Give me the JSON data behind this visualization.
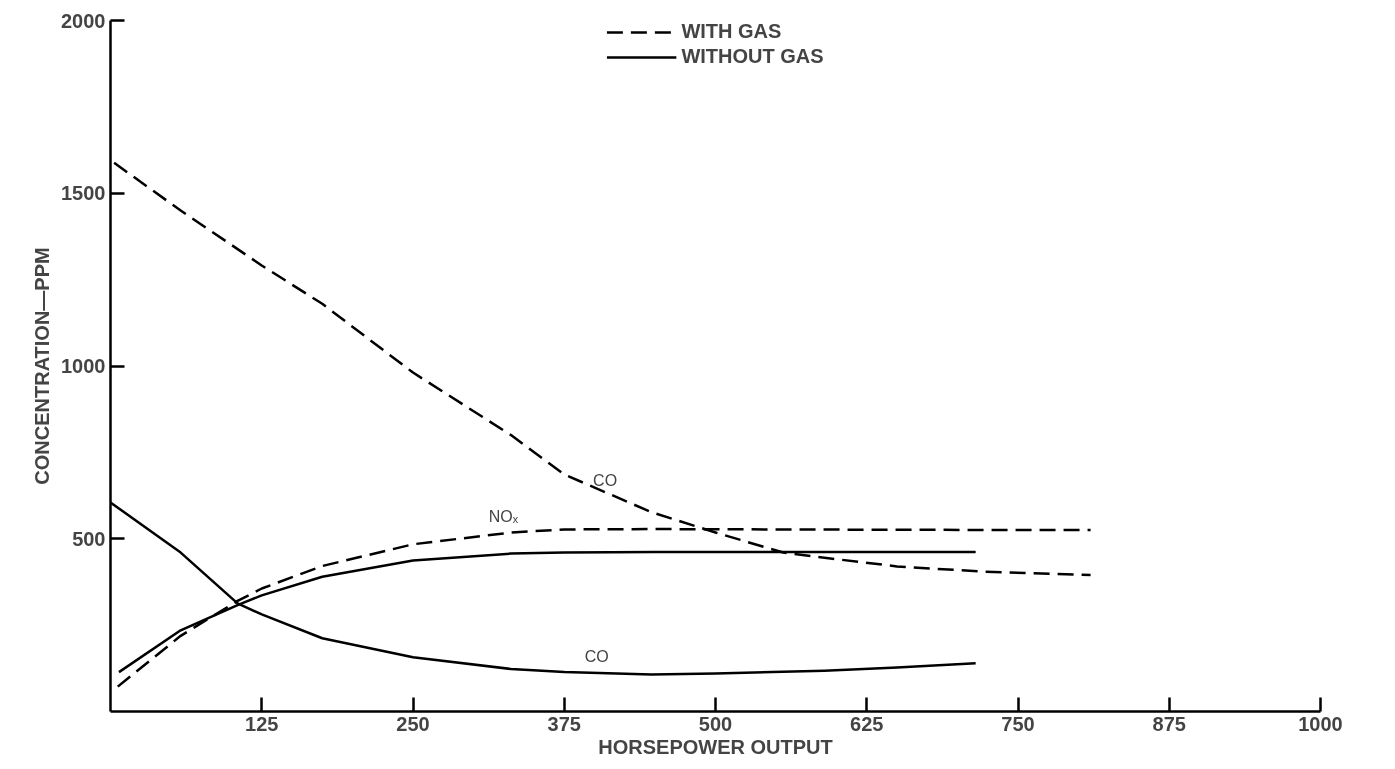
{
  "chart_data": {
    "type": "line",
    "xlabel": "HORSEPOWER OUTPUT",
    "ylabel": "CONCENTRATION—PPM",
    "xlim": [
      0,
      1000
    ],
    "ylim": [
      0,
      2000
    ],
    "xticks": [
      125,
      250,
      375,
      500,
      625,
      750,
      875,
      1000
    ],
    "yticks": [
      500,
      1000,
      1500,
      2000
    ],
    "grid": false,
    "legend": "top",
    "marker": "none",
    "series": [
      {
        "name": "WITH GAS",
        "color": "#000000",
        "line_style": "dashed",
        "x": [
          3,
          58,
          125,
          175,
          250,
          331,
          375,
          447,
          500,
          556,
          590,
          650,
          720,
          810
        ],
        "values": [
          1588,
          1450,
          1291,
          1180,
          981,
          800,
          686,
          577,
          518,
          460,
          445,
          420,
          405,
          395
        ]
      },
      {
        "color": "#000000",
        "line_style": "dashed",
        "x": [
          6,
          58,
          105,
          125,
          175,
          250,
          331,
          375,
          450,
          550,
          650,
          810
        ],
        "values": [
          72,
          219,
          320,
          356,
          421,
          484,
          518,
          527,
          528,
          527,
          526,
          525
        ]
      },
      {
        "name": "WITHOUT GAS",
        "color": "#000000",
        "line_style": "solid",
        "x": [
          0,
          58,
          105,
          125,
          175,
          250,
          331,
          375,
          447,
          500,
          590,
          650,
          715
        ],
        "values": [
          605,
          460,
          313,
          281,
          212,
          157,
          123,
          114,
          107,
          110,
          118,
          127,
          140
        ]
      },
      {
        "color": "#000000",
        "line_style": "solid",
        "x": [
          7,
          58,
          105,
          125,
          175,
          250,
          331,
          375,
          450,
          550,
          650,
          715
        ],
        "values": [
          114,
          235,
          308,
          336,
          390,
          437,
          457,
          460,
          462,
          462,
          462,
          462
        ]
      }
    ],
    "annotations": [
      {
        "text": "CO",
        "x": 422,
        "y": 620
      },
      {
        "text": "CO",
        "x": 415,
        "y": 110
      },
      {
        "text": "NOₓ",
        "x": 340,
        "y": 518
      }
    ]
  }
}
